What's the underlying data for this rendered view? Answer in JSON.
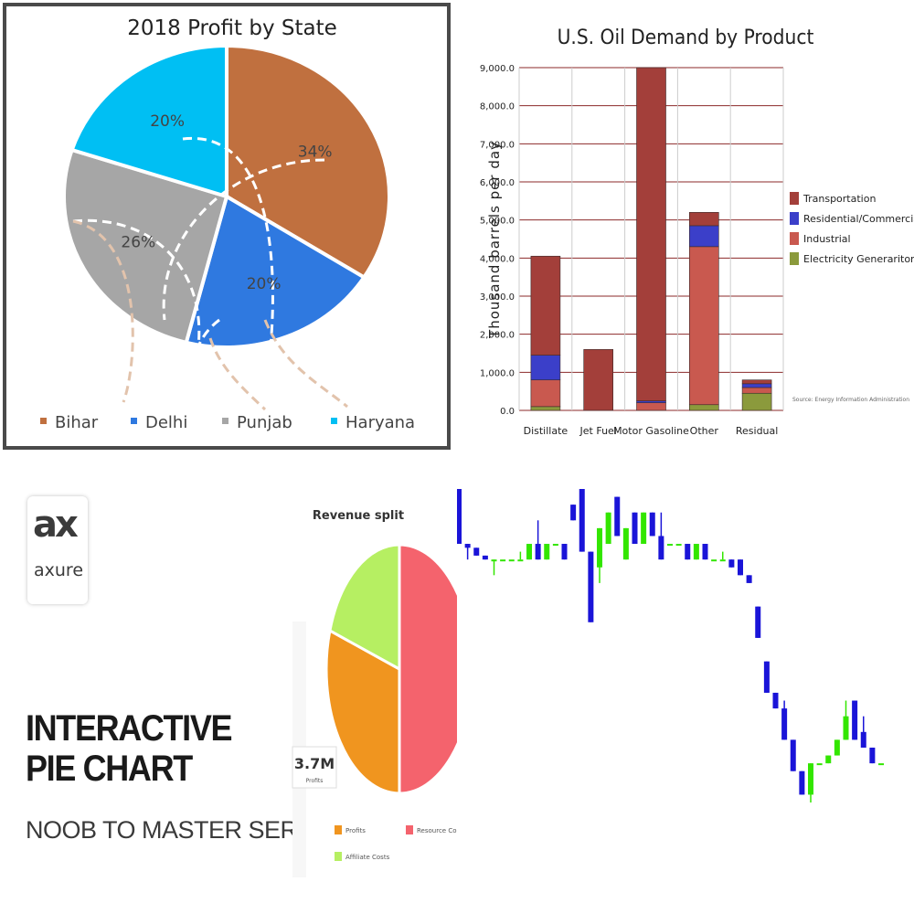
{
  "chart_data": [
    {
      "type": "pie",
      "title": "2018 Profit by State",
      "slices": [
        {
          "label": "Bihar",
          "value": 34,
          "display": "34%",
          "color": "#c0703f"
        },
        {
          "label": "Delhi",
          "value": 20,
          "display": "20%",
          "color": "#2f79e0"
        },
        {
          "label": "Punjab",
          "value": 26,
          "display": "26%",
          "color": "#a6a6a6"
        },
        {
          "label": "Haryana",
          "value": 20,
          "display": "20%",
          "color": "#00bff3"
        }
      ],
      "legend": "bottom"
    },
    {
      "type": "bar",
      "stacked": true,
      "title": "U.S. Oil Demand by Product",
      "ylabel": "Thousand barrels per day",
      "ylim": [
        0,
        9000
      ],
      "yticks": [
        "0.0",
        "1,000.0",
        "2,000.0",
        "3,000.0",
        "4,000.0",
        "5,000.0",
        "6,000.0",
        "7,000.0",
        "8,000.0",
        "9,000.0"
      ],
      "categories": [
        "Distillate",
        "Jet Fuel",
        "Motor Gasoline",
        "Other",
        "Residual"
      ],
      "series": [
        {
          "name": "Electricity Generariton",
          "color": "#8b9a3c",
          "values": [
            100,
            0,
            0,
            150,
            450
          ]
        },
        {
          "name": "Industrial",
          "color": "#c9594f",
          "values": [
            700,
            0,
            200,
            4150,
            150
          ]
        },
        {
          "name": "Residential/Commercial",
          "color": "#3b3fc9",
          "values": [
            650,
            0,
            50,
            550,
            100
          ]
        },
        {
          "name": "Transportation",
          "color": "#a33f3a",
          "values": [
            2600,
            1600,
            8750,
            350,
            100
          ]
        }
      ],
      "legend": "right",
      "grid": true,
      "source": "Source:  Energy Information Administration"
    },
    {
      "type": "pie",
      "title": "Revenue split",
      "center_label": "3.7M",
      "center_sublabel": "Profits",
      "slices": [
        {
          "label": "Resource Co",
          "value": 50,
          "color": "#f4636d"
        },
        {
          "label": "Profits",
          "value": 30,
          "color": "#f0951f"
        },
        {
          "label": "Affiliate Costs",
          "value": 20,
          "color": "#b6ef62"
        }
      ],
      "legend": "bottom"
    },
    {
      "type": "candlestick",
      "note": "price chart without axes; up candles green, down candles blue",
      "colors": {
        "up": "#33e600",
        "down": "#1a14d8"
      },
      "candles": [
        {
          "o": 92,
          "c": 78,
          "h": 92,
          "l": 78
        },
        {
          "o": 78,
          "c": 77,
          "h": 78,
          "l": 74
        },
        {
          "o": 77,
          "c": 75,
          "h": 77,
          "l": 75
        },
        {
          "o": 75,
          "c": 74,
          "h": 75,
          "l": 74
        },
        {
          "o": 74,
          "c": 74,
          "h": 74,
          "l": 70
        },
        {
          "o": 74,
          "c": 74,
          "h": 74,
          "l": 74
        },
        {
          "o": 74,
          "c": 74,
          "h": 74,
          "l": 74
        },
        {
          "o": 74,
          "c": 74,
          "h": 76,
          "l": 74
        },
        {
          "o": 74,
          "c": 78,
          "h": 78,
          "l": 74
        },
        {
          "o": 78,
          "c": 74,
          "h": 84,
          "l": 74
        },
        {
          "o": 74,
          "c": 78,
          "h": 78,
          "l": 74
        },
        {
          "o": 78,
          "c": 78,
          "h": 78,
          "l": 78
        },
        {
          "o": 78,
          "c": 74,
          "h": 78,
          "l": 74
        },
        {
          "o": 88,
          "c": 84,
          "h": 88,
          "l": 84
        },
        {
          "o": 92,
          "c": 76,
          "h": 92,
          "l": 76
        },
        {
          "o": 76,
          "c": 58,
          "h": 76,
          "l": 58
        },
        {
          "o": 72,
          "c": 82,
          "h": 82,
          "l": 68
        },
        {
          "o": 78,
          "c": 86,
          "h": 86,
          "l": 78
        },
        {
          "o": 90,
          "c": 80,
          "h": 90,
          "l": 80
        },
        {
          "o": 74,
          "c": 82,
          "h": 82,
          "l": 74
        },
        {
          "o": 86,
          "c": 78,
          "h": 86,
          "l": 78
        },
        {
          "o": 78,
          "c": 86,
          "h": 86,
          "l": 78
        },
        {
          "o": 86,
          "c": 80,
          "h": 86,
          "l": 80
        },
        {
          "o": 80,
          "c": 74,
          "h": 86,
          "l": 74
        },
        {
          "o": 78,
          "c": 78,
          "h": 78,
          "l": 78
        },
        {
          "o": 78,
          "c": 78,
          "h": 78,
          "l": 78
        },
        {
          "o": 78,
          "c": 74,
          "h": 78,
          "l": 74
        },
        {
          "o": 74,
          "c": 78,
          "h": 78,
          "l": 74
        },
        {
          "o": 78,
          "c": 74,
          "h": 78,
          "l": 74
        },
        {
          "o": 74,
          "c": 74,
          "h": 74,
          "l": 74
        },
        {
          "o": 74,
          "c": 74,
          "h": 76,
          "l": 74
        },
        {
          "o": 74,
          "c": 72,
          "h": 74,
          "l": 72
        },
        {
          "o": 74,
          "c": 70,
          "h": 74,
          "l": 70
        },
        {
          "o": 70,
          "c": 68,
          "h": 70,
          "l": 68
        },
        {
          "o": 62,
          "c": 54,
          "h": 62,
          "l": 54
        },
        {
          "o": 48,
          "c": 40,
          "h": 48,
          "l": 40
        },
        {
          "o": 40,
          "c": 36,
          "h": 40,
          "l": 36
        },
        {
          "o": 36,
          "c": 28,
          "h": 38,
          "l": 28
        },
        {
          "o": 28,
          "c": 20,
          "h": 28,
          "l": 20
        },
        {
          "o": 20,
          "c": 14,
          "h": 20,
          "l": 14
        },
        {
          "o": 14,
          "c": 22,
          "h": 22,
          "l": 12
        },
        {
          "o": 22,
          "c": 22,
          "h": 22,
          "l": 22
        },
        {
          "o": 22,
          "c": 24,
          "h": 24,
          "l": 22
        },
        {
          "o": 24,
          "c": 28,
          "h": 28,
          "l": 24
        },
        {
          "o": 28,
          "c": 34,
          "h": 38,
          "l": 28
        },
        {
          "o": 38,
          "c": 28,
          "h": 38,
          "l": 28
        },
        {
          "o": 30,
          "c": 26,
          "h": 34,
          "l": 26
        },
        {
          "o": 26,
          "c": 22,
          "h": 26,
          "l": 22
        },
        {
          "o": 22,
          "c": 22,
          "h": 22,
          "l": 22
        }
      ]
    }
  ],
  "promo": {
    "logo_mark": "ax",
    "logo_word": "axure",
    "headline_line1": "INTERACTIVE",
    "headline_line2": "PIE CHART",
    "series_name": "NOOB TO MASTER SERIES"
  }
}
